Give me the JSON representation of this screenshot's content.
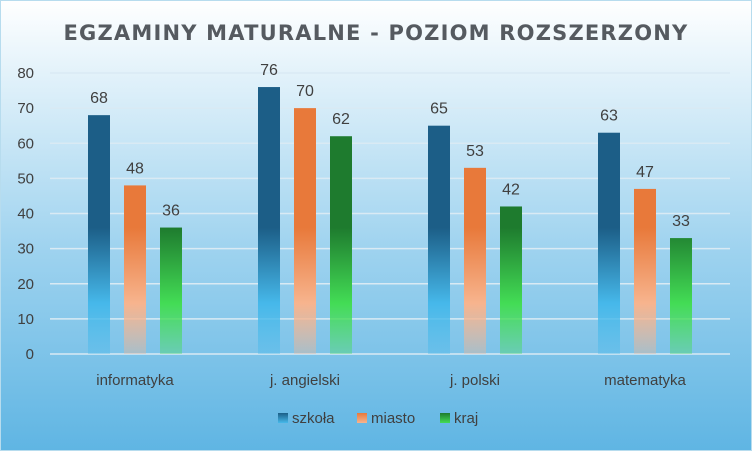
{
  "chart_data": {
    "type": "bar",
    "title": "EGZAMINY MATURALNE - POZIOM ROZSZERZONY",
    "categories": [
      "informatyka",
      "j. angielski",
      "j. polski",
      "matematyka"
    ],
    "series": [
      {
        "name": "szkoła",
        "values": [
          68,
          76,
          65,
          63
        ],
        "color": "#1c5e87"
      },
      {
        "name": "miasto",
        "values": [
          48,
          70,
          53,
          47
        ],
        "color": "#e8793a"
      },
      {
        "name": "kraj",
        "values": [
          36,
          62,
          42,
          33
        ],
        "color": "#1e7b2e"
      }
    ],
    "ylim": [
      0,
      80
    ],
    "yticks": [
      "0",
      "10",
      "20",
      "30",
      "40",
      "50",
      "60",
      "70",
      "80"
    ],
    "grid": true,
    "legend_position": "bottom",
    "background_gradient": [
      "#ffffff",
      "#9fd3ef",
      "#5fb5e3"
    ]
  }
}
